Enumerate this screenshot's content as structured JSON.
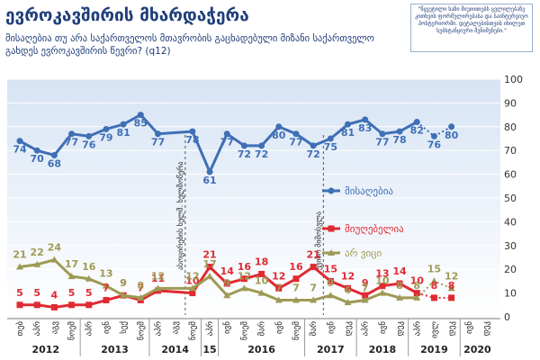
{
  "chart_data": {
    "type": "line",
    "title": "ევროკავშირის მხარდაჭერა",
    "subtitle": "მისაღებია თუ არა საქართველოს მთავრობის გაცხადებული მიზანი საქართველო გახდეს ევროკავშირის წევრი? (q12)",
    "note": "\"წყვეტილი ხაზი მიუთითებს ცვლილებაზე კითხვის ფორმულირებასა და საინტერვიუო პოსტერიორში. დეტალებისთვის იხილეთ სუბსტანციური შენიშვნები.\"",
    "ylim": [
      0,
      100
    ],
    "yticks": [
      0,
      10,
      20,
      30,
      40,
      50,
      60,
      70,
      80,
      90,
      100
    ],
    "x_labels": [
      "თებ",
      "აპრ",
      "აგვ",
      "ნოემ",
      "აპრ",
      "ივნ",
      "სექ",
      "ნოემ",
      "აპრ",
      "აგვ",
      "ნოემ",
      "აპრ",
      "ივნ",
      "ნოემ",
      "მარ",
      "ივნ",
      "ნოემ",
      "მარ",
      "ივნ",
      "დეკ",
      "აპრ",
      "ივნ",
      "დეკ",
      "აპრ",
      "ივლ",
      "დეკ",
      "ივნ",
      "დეკ"
    ],
    "years": [
      {
        "label": "2012",
        "start": 0,
        "end": 3
      },
      {
        "label": "2013",
        "start": 4,
        "end": 7
      },
      {
        "label": "2014",
        "start": 8,
        "end": 10
      },
      {
        "label": "15",
        "start": 11,
        "end": 11
      },
      {
        "label": "2016",
        "start": 12,
        "end": 16
      },
      {
        "label": "2017",
        "start": 17,
        "end": 19
      },
      {
        "label": "2018",
        "start": 20,
        "end": 22
      },
      {
        "label": "2019",
        "start": 23,
        "end": 25
      },
      {
        "label": "2020",
        "start": 26,
        "end": 27
      }
    ],
    "annotations": [
      {
        "x": 10,
        "text": "ასოცირების ხელშ. ხელმოწერა"
      },
      {
        "x": 18,
        "text": "უვიზო მიმოსვლა"
      }
    ],
    "series": [
      {
        "name": "მისაღებია",
        "color": "#3f6fb5",
        "values": [
          74,
          70,
          68,
          77,
          76,
          79,
          81,
          85,
          77,
          78,
          61,
          77,
          72,
          72,
          80,
          77,
          72,
          75,
          81,
          83,
          77,
          78,
          82,
          76,
          80
        ],
        "x": [
          0,
          1,
          2,
          3,
          4,
          5,
          6,
          7,
          8,
          10,
          11,
          12,
          13,
          14,
          15,
          16,
          17,
          18,
          19,
          20,
          21,
          22,
          23,
          24,
          25
        ],
        "dashed_from": 23
      },
      {
        "name": "მიუღებელია",
        "color": "#e02a32",
        "values": [
          5,
          5,
          4,
          5,
          5,
          7,
          9,
          7,
          11,
          10,
          21,
          14,
          16,
          18,
          12,
          16,
          21,
          15,
          12,
          9,
          13,
          14,
          10,
          8,
          8
        ],
        "x": [
          0,
          1,
          2,
          3,
          4,
          5,
          6,
          7,
          8,
          10,
          11,
          12,
          13,
          14,
          15,
          16,
          17,
          18,
          19,
          20,
          21,
          22,
          23,
          24,
          25
        ],
        "dashed_from": 23
      },
      {
        "name": "არ ვიცი",
        "color": "#9e9a55",
        "values": [
          21,
          22,
          24,
          17,
          16,
          13,
          9,
          8,
          12,
          12,
          17,
          9,
          12,
          10,
          7,
          7,
          7,
          9,
          6,
          7,
          10,
          8,
          8,
          15,
          12
        ],
        "x": [
          0,
          1,
          2,
          3,
          4,
          5,
          6,
          7,
          8,
          10,
          11,
          12,
          13,
          14,
          15,
          16,
          17,
          18,
          19,
          20,
          21,
          22,
          23,
          24,
          25
        ],
        "dashed_from": 23
      }
    ]
  }
}
